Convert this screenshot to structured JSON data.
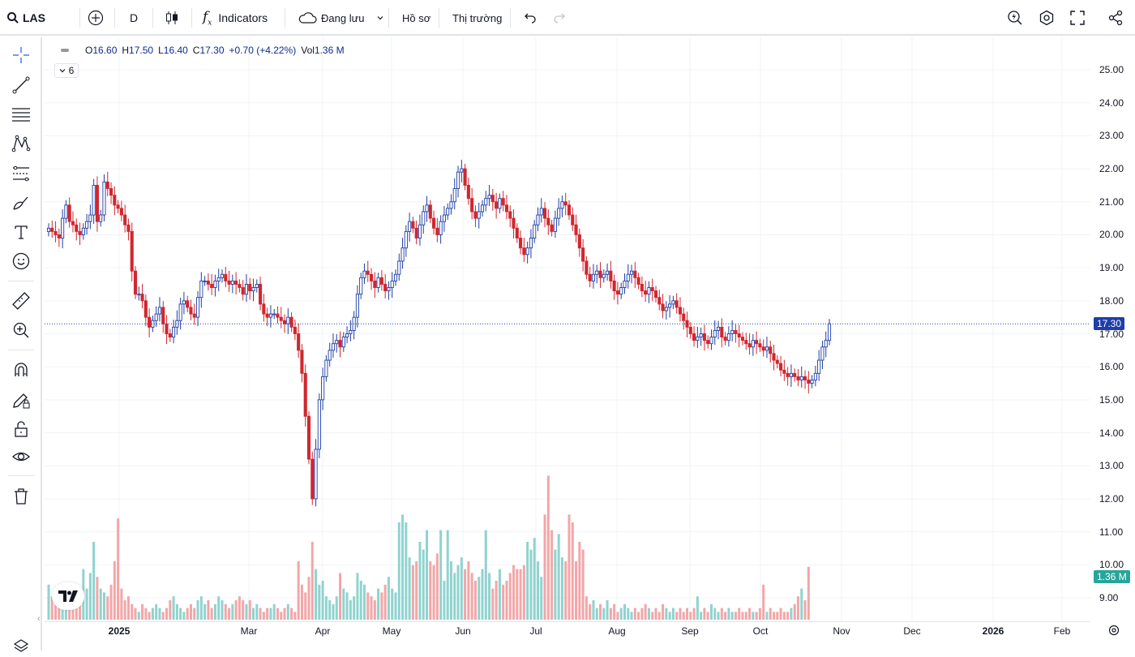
{
  "header": {
    "symbol": "LAS",
    "interval": "D",
    "indicators_label": "Indicators",
    "save_label": "Đang lưu",
    "profile_label": "Hồ sơ",
    "market_label": "Thị trường"
  },
  "legend": {
    "collapse_count": "6",
    "open_label": "O",
    "open": "16.60",
    "high_label": "H",
    "high": "17.50",
    "low_label": "L",
    "low": "16.40",
    "close_label": "C",
    "close": "17.30",
    "change": "+0.70 (+4.22%)",
    "vol_label": "Vol",
    "volume": "1.36 M"
  },
  "price_axis": {
    "labels": [
      "25.00",
      "24.00",
      "23.00",
      "22.00",
      "21.00",
      "20.00",
      "19.00",
      "18.00",
      "17.00",
      "16.00",
      "15.00",
      "14.00",
      "13.00",
      "12.00",
      "11.00",
      "10.00",
      "9.00"
    ],
    "current_price": "17.30",
    "current_volume": "1.36 M"
  },
  "time_axis": {
    "labels": [
      "2025",
      "Mar",
      "Apr",
      "May",
      "Jun",
      "Jul",
      "Aug",
      "Sep",
      "Oct",
      "Nov",
      "Dec",
      "2026",
      "Feb"
    ]
  },
  "colors": {
    "up": "#1e3ea8",
    "down": "#d1272f",
    "vol_up": "#8fd3cf",
    "vol_down": "#f3a6a8",
    "badge_price": "#1e3ea8",
    "badge_vol": "#26a69a"
  },
  "chart_data": {
    "type": "candlestick",
    "symbol": "LAS",
    "interval": "D",
    "ylim": [
      9,
      25
    ],
    "series": [
      {
        "name": "price",
        "values": [
          20.2,
          20.1,
          20.0,
          19.9,
          20.5,
          20.9,
          20.4,
          20.3,
          20.1,
          20.0,
          20.2,
          20.4,
          20.6,
          21.5,
          20.4,
          20.6,
          21.6,
          21.4,
          21.2,
          20.9,
          20.8,
          20.6,
          20.3,
          20.1,
          18.9,
          18.2,
          18.2,
          18.0,
          17.5,
          17.2,
          17.4,
          17.6,
          17.8,
          17.3,
          17.0,
          16.9,
          17.2,
          17.4,
          17.9,
          18.0,
          17.8,
          17.6,
          17.5,
          18.1,
          18.6,
          18.6,
          18.5,
          18.4,
          18.6,
          18.7,
          18.8,
          18.6,
          18.5,
          18.6,
          18.5,
          18.4,
          18.2,
          18.5,
          18.3,
          18.4,
          18.5,
          17.9,
          17.6,
          17.5,
          17.6,
          17.6,
          17.5,
          17.4,
          17.3,
          17.5,
          17.2,
          17.0,
          16.5,
          15.8,
          14.5,
          13.2,
          12.0,
          13.5,
          15.0,
          15.7,
          16.2,
          16.5,
          16.7,
          16.8,
          16.6,
          16.9,
          17.0,
          17.1,
          17.5,
          18.2,
          18.7,
          18.9,
          18.8,
          18.6,
          18.4,
          18.7,
          18.5,
          18.3,
          18.4,
          18.6,
          18.8,
          19.2,
          19.6,
          20.1,
          20.4,
          20.2,
          19.9,
          20.3,
          20.7,
          20.9,
          20.5,
          20.2,
          20.0,
          20.4,
          20.6,
          20.8,
          21.0,
          21.4,
          21.9,
          22.0,
          21.5,
          21.1,
          20.7,
          20.5,
          20.7,
          20.9,
          21.1,
          21.2,
          21.0,
          20.8,
          21.1,
          20.9,
          20.7,
          20.5,
          20.2,
          19.9,
          19.6,
          19.4,
          19.6,
          19.9,
          20.3,
          20.6,
          20.8,
          20.5,
          20.3,
          20.1,
          20.5,
          20.8,
          21.0,
          20.9,
          20.6,
          20.3,
          20.0,
          19.6,
          19.2,
          18.8,
          18.6,
          18.8,
          18.9,
          18.7,
          18.8,
          18.9,
          18.6,
          18.3,
          18.2,
          18.4,
          18.6,
          18.8,
          18.9,
          18.7,
          18.5,
          18.3,
          18.2,
          18.4,
          18.3,
          18.1,
          17.9,
          17.7,
          17.8,
          17.9,
          18.0,
          17.8,
          17.6,
          17.4,
          17.2,
          17.0,
          16.8,
          16.9,
          17.0,
          16.8,
          16.7,
          16.9,
          17.1,
          17.2,
          16.9,
          16.8,
          17.0,
          17.1,
          17.0,
          16.9,
          16.8,
          16.7,
          16.6,
          16.8,
          16.7,
          16.6,
          16.5,
          16.6,
          16.4,
          16.2,
          16.1,
          15.9,
          15.8,
          15.7,
          15.8,
          15.7,
          15.6,
          15.7,
          15.6,
          15.5,
          15.6,
          15.8,
          16.2,
          16.6,
          16.8,
          17.3
        ]
      },
      {
        "name": "volume",
        "values": [
          0.9,
          0.6,
          0.5,
          0.6,
          0.4,
          0.3,
          0.5,
          0.4,
          0.6,
          0.4,
          1.3,
          0.8,
          1.2,
          2.0,
          1.1,
          0.8,
          0.7,
          0.6,
          0.9,
          1.5,
          2.6,
          0.8,
          0.5,
          0.6,
          0.4,
          0.3,
          0.2,
          0.4,
          0.3,
          0.2,
          0.3,
          0.4,
          0.3,
          0.2,
          0.3,
          0.5,
          0.6,
          0.4,
          0.3,
          0.2,
          0.3,
          0.4,
          0.3,
          0.5,
          0.6,
          0.4,
          0.5,
          0.3,
          0.4,
          0.6,
          0.5,
          0.4,
          0.3,
          0.4,
          0.5,
          0.6,
          0.5,
          0.4,
          0.5,
          0.3,
          0.4,
          0.3,
          0.2,
          0.3,
          0.3,
          0.4,
          0.3,
          0.2,
          0.3,
          0.4,
          0.3,
          0.2,
          1.5,
          0.9,
          0.7,
          1.1,
          2.0,
          1.3,
          0.9,
          1.0,
          0.6,
          0.5,
          0.4,
          0.6,
          1.2,
          0.8,
          0.7,
          0.5,
          0.6,
          1.2,
          1.0,
          0.9,
          0.7,
          0.6,
          0.5,
          0.8,
          0.7,
          0.9,
          1.1,
          0.8,
          0.7,
          2.5,
          2.7,
          2.5,
          1.6,
          1.4,
          1.5,
          2.0,
          1.8,
          2.3,
          1.5,
          1.4,
          1.7,
          2.3,
          1.0,
          2.3,
          1.5,
          1.2,
          1.4,
          1.6,
          1.3,
          1.5,
          1.2,
          1.0,
          1.1,
          1.3,
          2.3,
          1.2,
          0.8,
          1.0,
          1.3,
          0.9,
          1.0,
          1.2,
          1.4,
          1.3,
          1.3,
          1.4,
          2.0,
          1.8,
          2.1,
          1.5,
          1.1,
          2.7,
          3.7,
          2.3,
          1.8,
          2.2,
          1.6,
          1.5,
          2.7,
          2.5,
          1.5,
          2.0,
          1.8,
          0.6,
          0.4,
          0.5,
          0.3,
          0.4,
          0.3,
          0.5,
          0.3,
          0.4,
          0.2,
          0.3,
          0.4,
          0.3,
          0.2,
          0.3,
          0.2,
          0.3,
          0.4,
          0.3,
          0.2,
          0.3,
          0.2,
          0.4,
          0.3,
          0.2,
          0.3,
          0.2,
          0.3,
          0.2,
          0.3,
          0.2,
          0.3,
          0.6,
          0.2,
          0.3,
          0.2,
          0.4,
          0.3,
          0.2,
          0.3,
          0.2,
          0.3,
          0.2,
          0.2,
          0.3,
          0.2,
          0.2,
          0.3,
          0.2,
          0.2,
          0.3,
          0.9,
          0.2,
          0.3,
          0.2,
          0.2,
          0.3,
          0.2,
          0.2,
          0.3,
          0.4,
          0.6,
          0.8,
          0.5,
          1.36
        ]
      }
    ]
  }
}
